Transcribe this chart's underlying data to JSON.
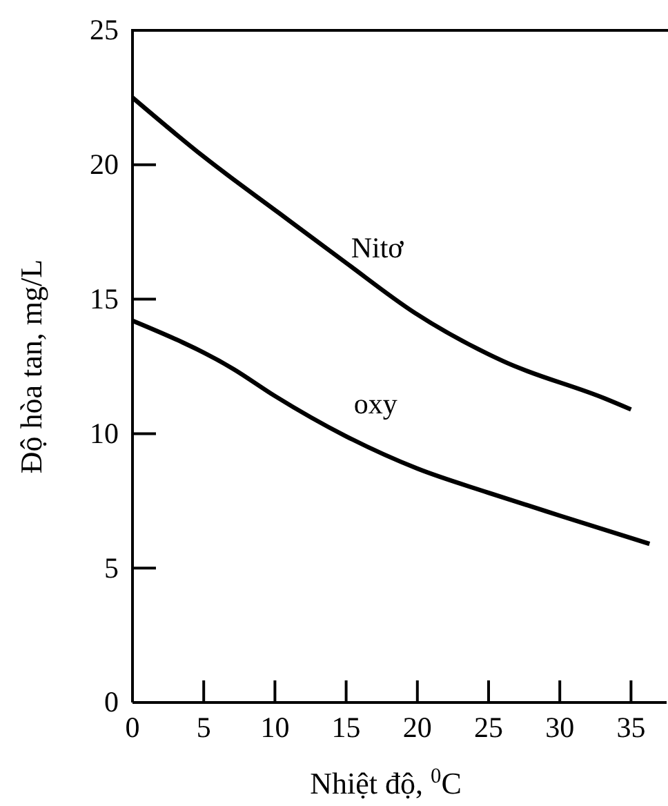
{
  "chart_data": {
    "type": "line",
    "xlabel": "Nhiệt độ, $^{0}$C",
    "ylabel": "Độ hòa tan, mg/L",
    "xlim": [
      0,
      37.5
    ],
    "ylim": [
      0,
      25
    ],
    "xticks": [
      0,
      5,
      10,
      15,
      20,
      25,
      30,
      35
    ],
    "yticks": [
      0,
      5,
      10,
      15,
      20,
      25
    ],
    "grid": false,
    "legend": false,
    "marker": "none",
    "line_style": "solid",
    "series": [
      {
        "name": "Nitơ",
        "color": "#000000",
        "x": [
          0,
          5,
          10.3,
          15,
          19.8,
          26,
          33.2,
          35
        ],
        "values": [
          22.5,
          20.3,
          18.2,
          16.35,
          14.5,
          12.7,
          11.3,
          10.9
        ]
      },
      {
        "name": "oxy",
        "color": "#000000",
        "x": [
          0,
          7.1,
          10,
          15,
          20,
          25,
          30,
          36.3
        ],
        "values": [
          14.2,
          12.4,
          11.4,
          9.9,
          8.7,
          7.8,
          6.95,
          5.9
        ]
      }
    ]
  }
}
